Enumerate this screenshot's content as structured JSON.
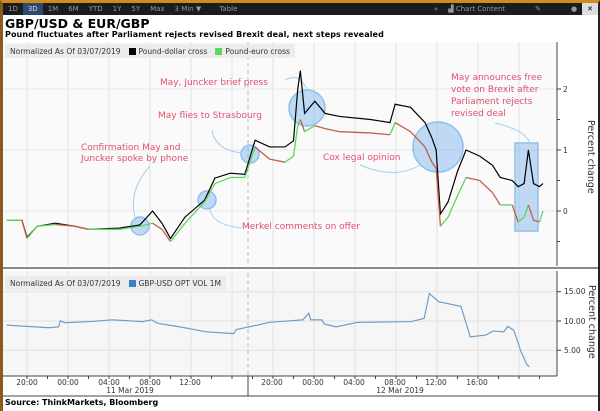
{
  "toolbar": {
    "ranges": [
      "1D",
      "3D",
      "1M",
      "6M",
      "YTD",
      "1Y",
      "5Y",
      "Max"
    ],
    "active": "3D",
    "interval": "3 Min ▼",
    "table": "Table",
    "collapse": "«",
    "chart_content": "Chart Content"
  },
  "title": "GBP/USD & EUR/GBP",
  "subtitle": "Pound fluctuates after Parliament rejects revised Brexit deal, next steps revealed",
  "source": "Source: ThinkMarkets, Bloomberg",
  "colors": {
    "pound_dollar": "#000000",
    "pound_euro_up": "#5cd65c",
    "pound_euro_down": "#c0604a",
    "vol": "#6f9ccc",
    "annotation": "#e0506e",
    "highlight": "#9cc8ee"
  },
  "chart_data": [
    {
      "type": "line",
      "legend_prefix": "Normalized As Of 03/07/2019",
      "ylabel": "Percent change",
      "yticks": [
        "2",
        "1",
        "0"
      ],
      "ylim": [
        -0.9,
        2.6
      ],
      "grid": true,
      "legend": "top-left",
      "x": [
        "03/10 18:00",
        "03/10 19:00",
        "03/10 19:30",
        "03/10 20:00",
        "03/10 21:00",
        "03/10 22:45",
        "03/11 00:40",
        "03/11 02:00",
        "03/11 05:00",
        "03/11 07:00",
        "03/11 08:15",
        "03/11 09:10",
        "03/11 10:00",
        "03/11 11:25",
        "03/11 13:20",
        "03/11 14:20",
        "03/11 15:50",
        "03/11 17:15",
        "03/11 18:15",
        "03/11 19:40",
        "03/11 21:10",
        "03/11 22:00",
        "03/11 22:25",
        "03/11 22:40",
        "03/11 23:05",
        "03/12 00:05",
        "03/12 01:05",
        "03/12 02:30",
        "03/12 05:30",
        "03/12 07:25",
        "03/12 07:55",
        "03/12 09:25",
        "03/12 10:50",
        "03/12 11:30",
        "03/12 11:55",
        "03/12 12:20",
        "03/12 13:05",
        "03/12 14:00",
        "03/12 14:50",
        "03/12 16:10",
        "03/12 17:25",
        "03/12 18:10",
        "03/12 19:20",
        "03/12 19:55",
        "03/12 20:30",
        "03/12 20:55",
        "03/12 21:25",
        "03/12 22:00",
        "03/12 22:20"
      ],
      "series": [
        {
          "name": "Pound-dollar cross",
          "values": [
            -0.15,
            -0.15,
            -0.15,
            -0.43,
            -0.25,
            -0.2,
            -0.25,
            -0.3,
            -0.28,
            -0.23,
            0.0,
            -0.2,
            -0.45,
            -0.1,
            0.18,
            0.54,
            0.62,
            0.6,
            1.16,
            1.05,
            1.05,
            1.15,
            2.0,
            2.3,
            1.6,
            1.8,
            1.6,
            1.55,
            1.5,
            1.45,
            1.75,
            1.7,
            1.45,
            1.2,
            1.0,
            -0.05,
            0.15,
            0.65,
            1.0,
            0.9,
            0.75,
            0.55,
            0.5,
            0.4,
            0.45,
            1.0,
            0.45,
            0.4,
            0.45
          ]
        },
        {
          "name": "Pound-euro cross",
          "values": [
            -0.15,
            -0.15,
            -0.15,
            -0.45,
            -0.25,
            -0.22,
            -0.25,
            -0.3,
            -0.3,
            -0.25,
            -0.2,
            -0.3,
            -0.5,
            -0.2,
            0.15,
            0.45,
            0.55,
            0.55,
            1.05,
            0.85,
            0.8,
            0.9,
            1.4,
            1.5,
            1.3,
            1.4,
            1.35,
            1.3,
            1.28,
            1.25,
            1.45,
            1.3,
            1.05,
            0.8,
            0.7,
            -0.25,
            -0.1,
            0.25,
            0.55,
            0.5,
            0.3,
            0.1,
            0.1,
            -0.18,
            -0.1,
            0.1,
            -0.15,
            -0.18,
            0.0
          ]
        }
      ],
      "annotations": [
        "May, Juncker brief press",
        "May flies to Strasbourg",
        "Confirmation May and\nJuncker spoke by phone",
        "Merkel comments on offer",
        "Cox legal opinion",
        "May announces free\nvote on Brexit after\nParliament rejects\nrevised deal"
      ]
    },
    {
      "type": "line",
      "legend_prefix": "Normalized As Of 03/07/2019",
      "ylabel": "Percent change",
      "yticks": [
        "15.00",
        "10.00",
        "5.00"
      ],
      "ylim": [
        1.5,
        18.5
      ],
      "grid": true,
      "legend": "top-left",
      "x": [
        "03/10 18:00",
        "03/10 22:10",
        "03/10 23:05",
        "03/10 23:15",
        "03/10 23:40",
        "03/11 02:10",
        "03/11 04:20",
        "03/11 07:15",
        "03/11 08:10",
        "03/11 08:45",
        "03/11 10:55",
        "03/11 13:30",
        "03/11 16:10",
        "03/11 16:25",
        "03/11 18:30",
        "03/11 19:35",
        "03/11 22:55",
        "03/11 23:30",
        "03/11 23:40",
        "03/12 00:45",
        "03/12 01:00",
        "03/12 02:10",
        "03/12 04:10",
        "03/12 09:30",
        "03/12 10:45",
        "03/12 11:15",
        "03/12 12:10",
        "03/12 14:20",
        "03/12 15:15",
        "03/12 16:45",
        "03/12 17:30",
        "03/12 18:30",
        "03/12 18:55",
        "03/12 19:30",
        "03/12 20:10",
        "03/12 20:45",
        "03/12 21:00"
      ],
      "series": [
        {
          "name": "GBP-USD OPT VOL 1M",
          "values": [
            9.3,
            8.85,
            9.0,
            10.05,
            9.7,
            9.9,
            10.2,
            9.9,
            10.2,
            9.6,
            9.0,
            8.15,
            7.85,
            8.55,
            9.3,
            9.75,
            10.2,
            11.35,
            10.2,
            10.2,
            9.5,
            9.0,
            9.75,
            9.9,
            10.45,
            14.7,
            13.3,
            12.5,
            7.3,
            7.6,
            8.3,
            8.15,
            9.1,
            8.4,
            4.9,
            2.6,
            2.2
          ]
        }
      ]
    }
  ],
  "xaxis": {
    "ticks": [
      "20:00",
      "00:00",
      "04:00",
      "08:00",
      "12:00",
      "20:00",
      "00:00",
      "04:00",
      "08:00",
      "12:00",
      "16:00"
    ],
    "dates": [
      "11 Mar 2019",
      "12 Mar 2019"
    ]
  }
}
